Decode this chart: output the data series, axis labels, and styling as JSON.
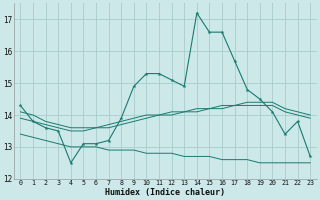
{
  "xlabel": "Humidex (Indice chaleur)",
  "background_color": "#cce8e8",
  "grid_color": "#aacccc",
  "line_color": "#1a7a6e",
  "xlim": [
    -0.5,
    23.5
  ],
  "ylim": [
    12,
    17.5
  ],
  "yticks": [
    12,
    13,
    14,
    15,
    16,
    17
  ],
  "xticks": [
    0,
    1,
    2,
    3,
    4,
    5,
    6,
    7,
    8,
    9,
    10,
    11,
    12,
    13,
    14,
    15,
    16,
    17,
    18,
    19,
    20,
    21,
    22,
    23
  ],
  "series1_x": [
    0,
    1,
    2,
    3,
    4,
    5,
    6,
    7,
    8,
    9,
    10,
    11,
    12,
    13,
    14,
    15,
    16,
    17,
    18,
    19,
    20,
    21,
    22,
    23
  ],
  "series1_y": [
    14.3,
    13.8,
    13.6,
    13.5,
    12.5,
    13.1,
    13.1,
    13.2,
    13.9,
    14.9,
    15.3,
    15.3,
    15.1,
    14.9,
    17.2,
    16.6,
    16.6,
    15.7,
    14.8,
    14.5,
    14.1,
    13.4,
    13.8,
    12.7
  ],
  "series2_x": [
    0,
    1,
    2,
    3,
    4,
    5,
    6,
    7,
    8,
    9,
    10,
    11,
    12,
    13,
    14,
    15,
    16,
    17,
    18,
    19,
    20,
    21,
    22,
    23
  ],
  "series2_y": [
    13.9,
    13.8,
    13.7,
    13.6,
    13.5,
    13.5,
    13.6,
    13.6,
    13.7,
    13.8,
    13.9,
    14.0,
    14.0,
    14.1,
    14.1,
    14.2,
    14.2,
    14.3,
    14.3,
    14.3,
    14.3,
    14.1,
    14.0,
    13.9
  ],
  "series3_x": [
    0,
    1,
    2,
    3,
    4,
    5,
    6,
    7,
    8,
    9,
    10,
    11,
    12,
    13,
    14,
    15,
    16,
    17,
    18,
    19,
    20,
    21,
    22,
    23
  ],
  "series3_y": [
    14.1,
    14.0,
    13.8,
    13.7,
    13.6,
    13.6,
    13.6,
    13.7,
    13.8,
    13.9,
    14.0,
    14.0,
    14.1,
    14.1,
    14.2,
    14.2,
    14.3,
    14.3,
    14.4,
    14.4,
    14.4,
    14.2,
    14.1,
    14.0
  ],
  "series4_x": [
    0,
    1,
    2,
    3,
    4,
    5,
    6,
    7,
    8,
    9,
    10,
    11,
    12,
    13,
    14,
    15,
    16,
    17,
    18,
    19,
    20,
    21,
    22,
    23
  ],
  "series4_y": [
    13.4,
    13.3,
    13.2,
    13.1,
    13.0,
    13.0,
    13.0,
    12.9,
    12.9,
    12.9,
    12.8,
    12.8,
    12.8,
    12.7,
    12.7,
    12.7,
    12.6,
    12.6,
    12.6,
    12.5,
    12.5,
    12.5,
    12.5,
    12.5
  ]
}
